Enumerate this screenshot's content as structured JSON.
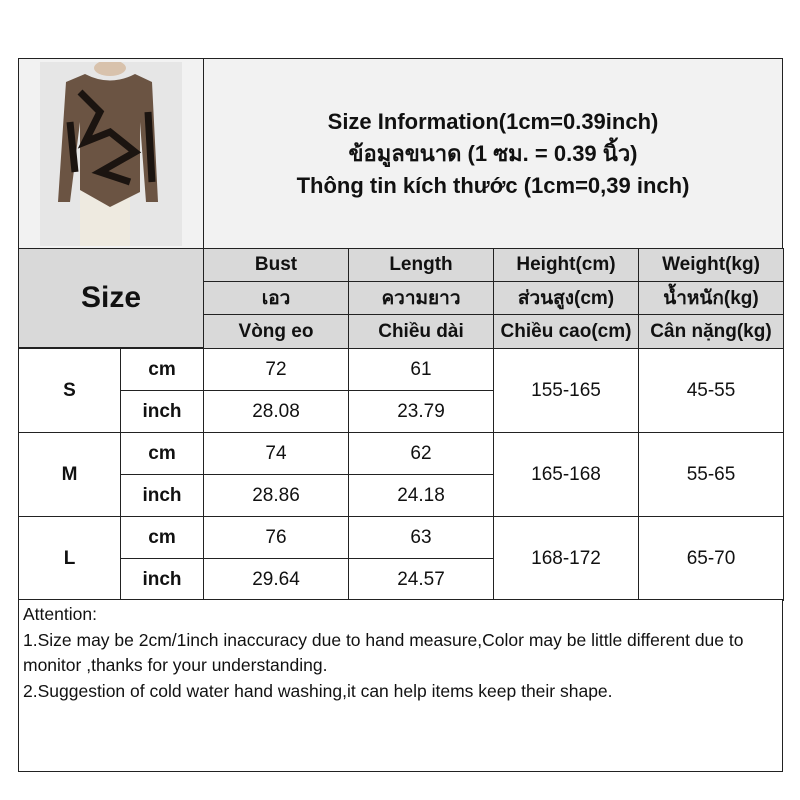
{
  "title": {
    "line1": "Size Information(1cm=0.39inch)",
    "line2": "ข้อมูลขนาด (1 ซม. = 0.39 นิ้ว)",
    "line3": "Thông tin kích thước (1cm=0,39 inch)"
  },
  "size_label": "Size",
  "columns": [
    {
      "en": "Bust",
      "th": "เอว",
      "vi": "Vòng eo"
    },
    {
      "en": "Length",
      "th": "ความยาว",
      "vi": "Chiều dài"
    },
    {
      "en": "Height(cm)",
      "th": "ส่วนสูง(cm)",
      "vi": "Chiều cao(cm)"
    },
    {
      "en": "Weight(kg)",
      "th": "น้ำหนัก(kg)",
      "vi": "Cân nặng(kg)"
    }
  ],
  "units": {
    "cm": "cm",
    "inch": "inch"
  },
  "rows": [
    {
      "size": "S",
      "bust_cm": "72",
      "bust_in": "28.08",
      "length_cm": "61",
      "length_in": "23.79",
      "height": "155-165",
      "weight": "45-55"
    },
    {
      "size": "M",
      "bust_cm": "74",
      "bust_in": "28.86",
      "length_cm": "62",
      "length_in": "24.18",
      "height": "165-168",
      "weight": "55-65"
    },
    {
      "size": "L",
      "bust_cm": "76",
      "bust_in": "29.64",
      "length_cm": "63",
      "length_in": "24.57",
      "height": "168-172",
      "weight": "65-70"
    }
  ],
  "attention": {
    "heading": "Attention:",
    "note1": "1.Size may be 2cm/1inch inaccuracy due to hand measure,Color may be little different due to monitor ,thanks for your understanding.",
    "note2": "2.Suggestion of cold water hand washing,it can help items keep their shape."
  }
}
